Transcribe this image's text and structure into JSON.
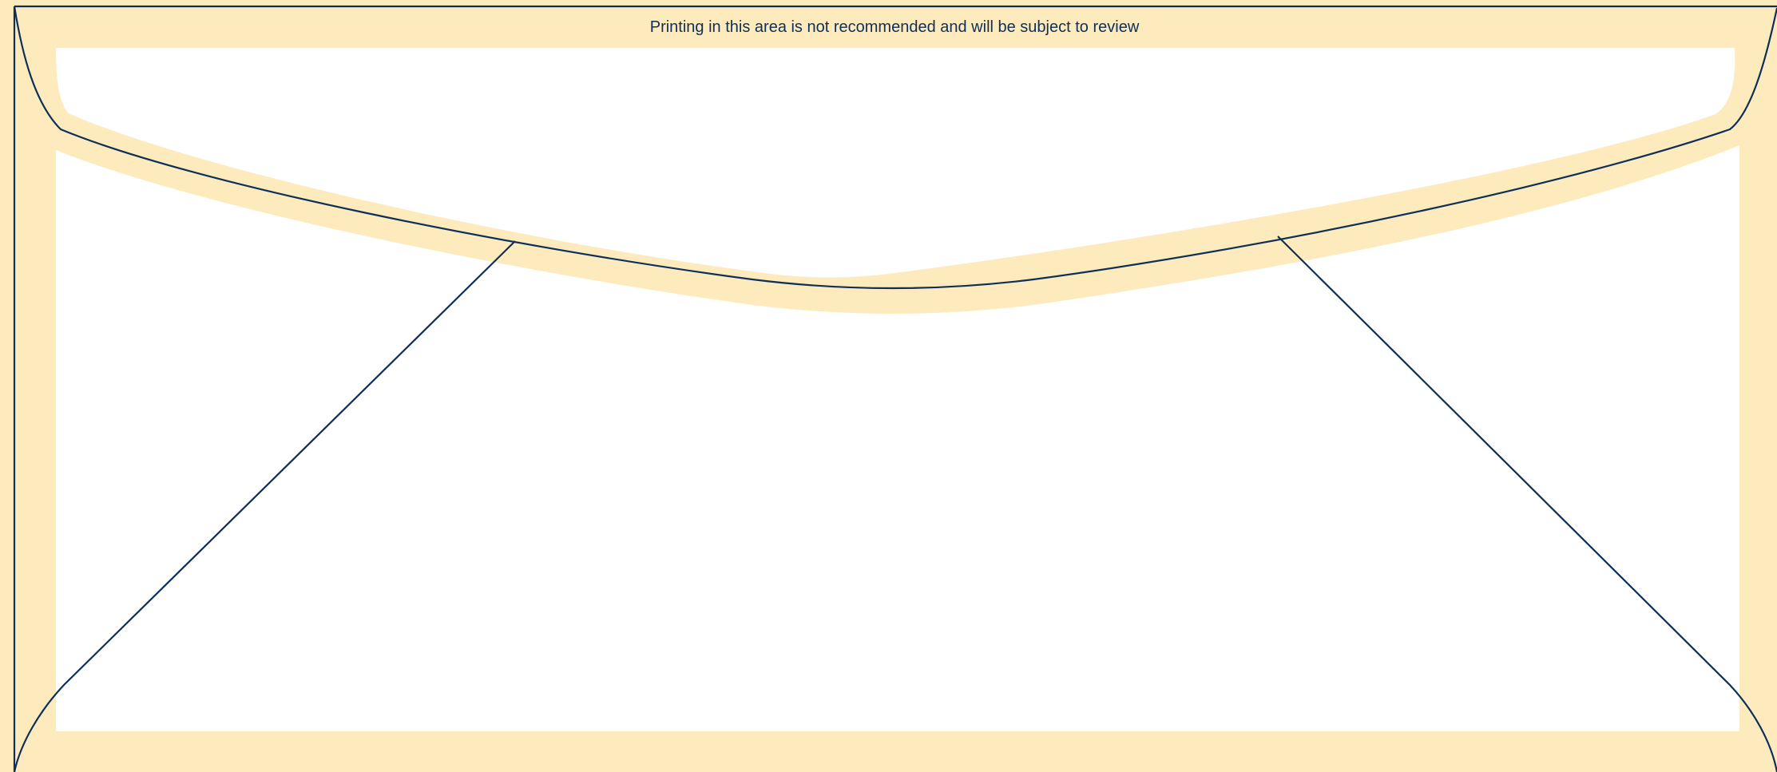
{
  "template": {
    "notice_text": "Printing in this area is not recommended and will be subject to review"
  },
  "colors": {
    "review_zone": "#FDEBBE",
    "safe_area": "#FFFFFF",
    "die_line": "#0E2F57",
    "notice_text": "#0E2F57"
  }
}
